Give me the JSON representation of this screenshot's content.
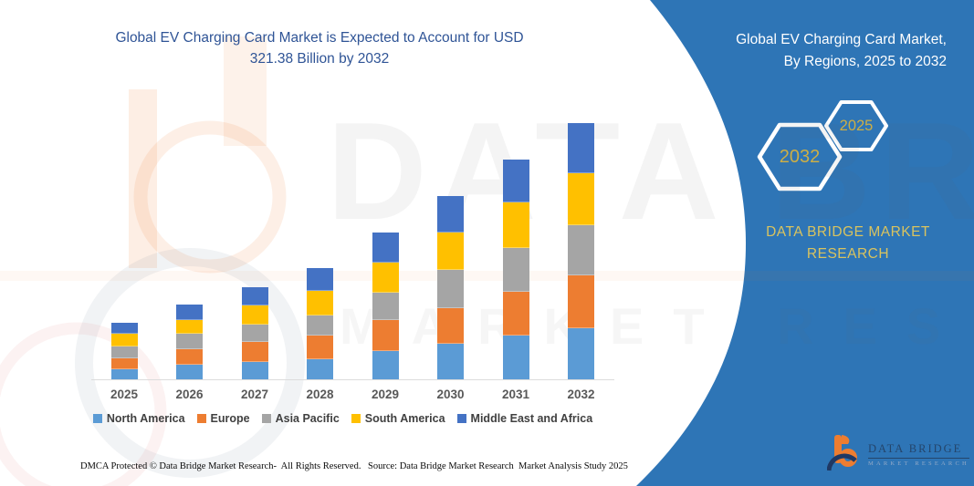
{
  "titles": {
    "chart_title_line1": "Global EV Charging Card Market is Expected to Account for USD",
    "chart_title_line2": "321.38 Billion by 2032",
    "panel_title_line1": "Global EV Charging Card Market,",
    "panel_title_line2": "By Regions, 2025 to 2032"
  },
  "side_panel": {
    "hexagon_back_label": "2032",
    "hexagon_front_label": "2025",
    "brand_line1": "DATA BRIDGE MARKET",
    "brand_line2": "RESEARCH",
    "background_color": "#2E75B6",
    "gold_color": "#CDAE45"
  },
  "watermark": {
    "line1": "DATA BRIDGE",
    "line2": "MARKET RESEARCH"
  },
  "logo": {
    "b_icon": "data-bridge-b-icon",
    "name": "DATA BRIDGE",
    "subtitle": "MARKET RESEARCH",
    "orange": "#ED7D31",
    "navy": "#1F3864"
  },
  "footer": {
    "dmca": "DMCA Protected © Data Bridge Market Research-  All Rights Reserved.",
    "source": "Source: Data Bridge Market Research  Market Analysis Study 2025"
  },
  "chart_data": {
    "type": "bar",
    "stacked": true,
    "title": "Global EV Charging Card Market is Expected to Account for USD 321.38 Billion by 2032",
    "subtitle": "Global EV Charging Card Market, By Regions, 2025 to 2032",
    "unit": "USD Billion",
    "categories": [
      "2025",
      "2026",
      "2027",
      "2028",
      "2029",
      "2030",
      "2031",
      "2032"
    ],
    "series": [
      {
        "name": "North America",
        "color": "#5B9BD5",
        "values": [
          12.8,
          18.2,
          22.1,
          26.0,
          35.8,
          45.6,
          56.1,
          65.0
        ]
      },
      {
        "name": "Europe",
        "color": "#ED7D31",
        "values": [
          12.4,
          18.6,
          24.4,
          28.3,
          39.0,
          43.3,
          54.2,
          65.8
        ]
      },
      {
        "name": "Asia Pacific",
        "color": "#A5A5A5",
        "values": [
          14.4,
          18.6,
          21.3,
          25.2,
          33.0,
          47.6,
          54.6,
          62.7
        ]
      },
      {
        "name": "South America",
        "color": "#FFC000",
        "values": [
          14.7,
          16.3,
          23.3,
          29.9,
          37.2,
          47.2,
          56.1,
          65.0
        ]
      },
      {
        "name": "Middle East and Africa",
        "color": "#4472C4",
        "values": [
          13.6,
          19.0,
          22.1,
          27.5,
          37.0,
          45.3,
          54.2,
          62.9
        ]
      }
    ],
    "totals_estimated": [
      67.9,
      90.7,
      113.2,
      136.9,
      182.0,
      229.0,
      275.2,
      321.4
    ],
    "stated_total_2032": 321.38,
    "xlabel": "",
    "ylabel": "",
    "ylim": [
      0,
      340
    ],
    "grid": false,
    "value_axis_visible": false,
    "legend_position": "bottom"
  }
}
